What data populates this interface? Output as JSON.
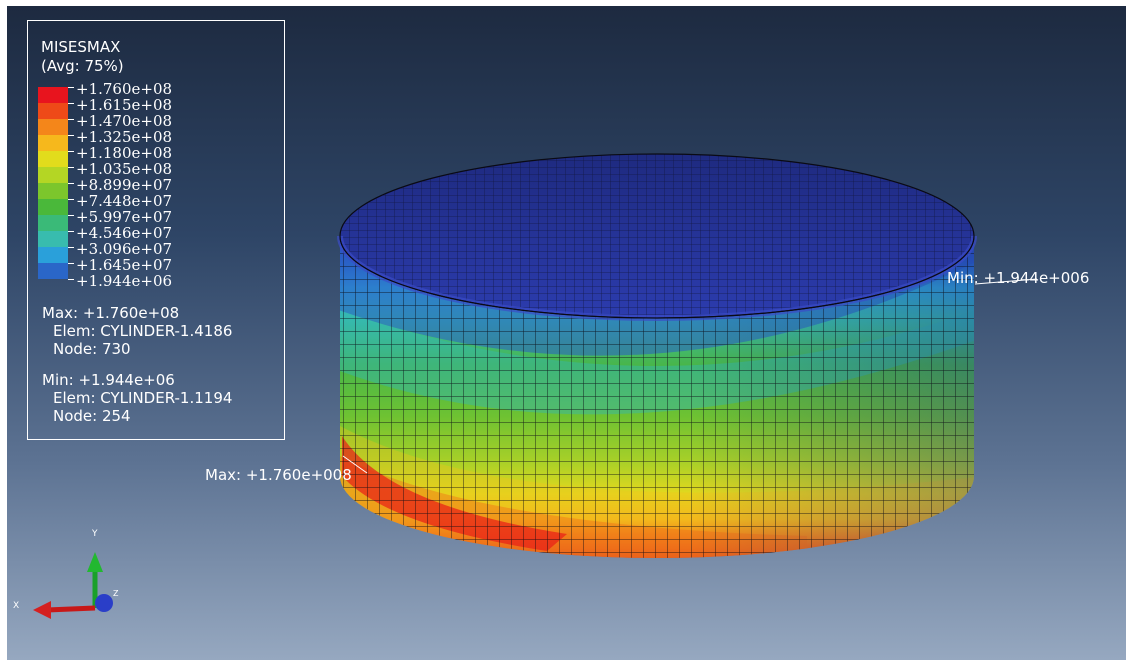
{
  "legend": {
    "title": "MISESMAX",
    "subtitle": "(Avg: 75%)",
    "levels": [
      {
        "value": "+1.760e+08",
        "color": "#e8141e"
      },
      {
        "value": "+1.615e+08",
        "color": "#ee4a18"
      },
      {
        "value": "+1.470e+08",
        "color": "#f4861a"
      },
      {
        "value": "+1.325e+08",
        "color": "#f6b81c"
      },
      {
        "value": "+1.180e+08",
        "color": "#e2dc1c"
      },
      {
        "value": "+1.035e+08",
        "color": "#b4d624"
      },
      {
        "value": "+8.899e+07",
        "color": "#7cc62c"
      },
      {
        "value": "+7.448e+07",
        "color": "#4ab83a"
      },
      {
        "value": "+5.997e+07",
        "color": "#3aba78"
      },
      {
        "value": "+4.546e+07",
        "color": "#38bcae"
      },
      {
        "value": "+3.096e+07",
        "color": "#2aa0da"
      },
      {
        "value": "+1.645e+07",
        "color": "#2a66c8"
      },
      {
        "value": "+1.944e+06",
        "color": "#2238a8"
      }
    ],
    "max_label": "Max: +1.760e+08",
    "max_elem": "Elem: CYLINDER-1.4186",
    "max_node": "Node: 730",
    "min_label": "Min: +1.944e+06",
    "min_elem": "Elem: CYLINDER-1.1194",
    "min_node": "Node: 254"
  },
  "viewport": {
    "min_probe": "Min: +1.944e+006",
    "max_probe": "Max: +1.760e+008"
  },
  "triad": {
    "x_label": "X",
    "y_label": "Y",
    "z_label": "Z"
  },
  "colors": {
    "background_top": "#1d2a40",
    "background_bottom": "#96a8c0",
    "roof": "#27308a",
    "mesh_line": "#0a0a14"
  }
}
